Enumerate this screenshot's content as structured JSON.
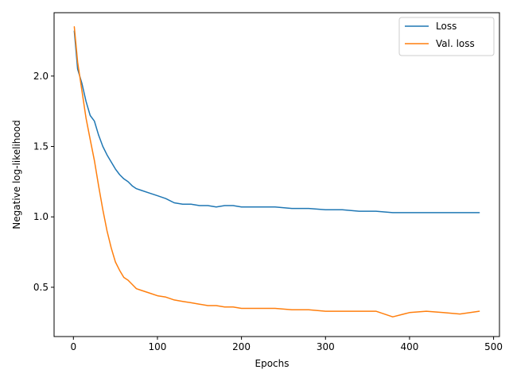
{
  "chart_data": {
    "type": "line",
    "xlabel": "Epochs",
    "ylabel": "Negative log-likelihood",
    "xlim": [
      -23,
      507
    ],
    "ylim": [
      0.15,
      2.45
    ],
    "xticks": [
      0,
      100,
      200,
      300,
      400,
      500
    ],
    "yticks": [
      0.5,
      1.0,
      1.5,
      2.0
    ],
    "xtick_labels": [
      "0",
      "100",
      "200",
      "300",
      "400",
      "500"
    ],
    "ytick_labels": [
      "0.5",
      "1.0",
      "1.5",
      "2.0"
    ],
    "grid": false,
    "legend_position": "top-right",
    "series": [
      {
        "name": "Loss",
        "color": "#1f77b4",
        "x": [
          1,
          5,
          10,
          15,
          20,
          25,
          30,
          35,
          40,
          45,
          50,
          55,
          60,
          65,
          70,
          75,
          80,
          90,
          100,
          110,
          120,
          130,
          140,
          150,
          160,
          170,
          180,
          190,
          200,
          220,
          240,
          260,
          280,
          300,
          320,
          340,
          360,
          380,
          400,
          420,
          440,
          460,
          483
        ],
        "y": [
          2.32,
          2.05,
          1.95,
          1.82,
          1.72,
          1.68,
          1.58,
          1.5,
          1.44,
          1.39,
          1.34,
          1.3,
          1.27,
          1.25,
          1.22,
          1.2,
          1.19,
          1.17,
          1.15,
          1.13,
          1.1,
          1.09,
          1.09,
          1.08,
          1.08,
          1.07,
          1.08,
          1.08,
          1.07,
          1.07,
          1.07,
          1.06,
          1.06,
          1.05,
          1.05,
          1.04,
          1.04,
          1.03,
          1.03,
          1.03,
          1.03,
          1.03,
          1.03
        ]
      },
      {
        "name": "Val. loss",
        "color": "#ff7f0e",
        "x": [
          1,
          5,
          10,
          15,
          20,
          25,
          30,
          35,
          40,
          45,
          50,
          55,
          60,
          65,
          70,
          75,
          80,
          90,
          100,
          110,
          120,
          130,
          140,
          150,
          160,
          170,
          180,
          190,
          200,
          220,
          240,
          260,
          280,
          300,
          320,
          340,
          360,
          380,
          400,
          420,
          440,
          460,
          483
        ],
        "y": [
          2.35,
          2.1,
          1.9,
          1.7,
          1.55,
          1.4,
          1.22,
          1.05,
          0.9,
          0.78,
          0.68,
          0.62,
          0.57,
          0.55,
          0.52,
          0.49,
          0.48,
          0.46,
          0.44,
          0.43,
          0.41,
          0.4,
          0.39,
          0.38,
          0.37,
          0.37,
          0.36,
          0.36,
          0.35,
          0.35,
          0.35,
          0.34,
          0.34,
          0.33,
          0.33,
          0.33,
          0.33,
          0.29,
          0.32,
          0.33,
          0.32,
          0.31,
          0.33
        ]
      }
    ]
  }
}
